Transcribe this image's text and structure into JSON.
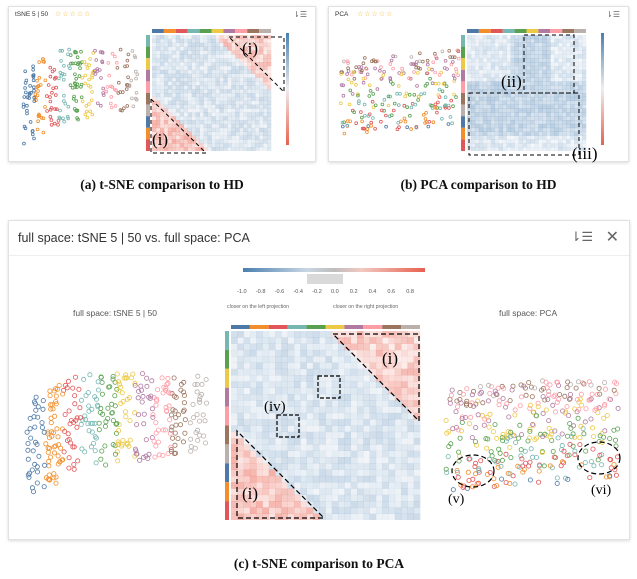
{
  "panel_a": {
    "title": "tSNE 5 | 50",
    "stars": "☆☆☆☆☆",
    "annotations": [
      "(i)",
      "(i)"
    ],
    "caption": "(a) t-SNE comparison to HD"
  },
  "panel_b": {
    "title": "PCA",
    "stars": "☆☆☆☆☆",
    "annotations": [
      "(ii)",
      "(iii)"
    ],
    "caption": "(b) PCA comparison to HD"
  },
  "panel_c": {
    "title": "full space: tSNE 5 | 50 vs. full space: PCA",
    "left_label": "full space: tSNE 5 | 50",
    "right_label": "full space: PCA",
    "colorbar_ticks": [
      "-1.0",
      "-0.8",
      "-0.6",
      "-0.4",
      "-0.2",
      "0.0",
      "0.2",
      "0.4",
      "0.6",
      "0.8",
      "1.0"
    ],
    "colorbar_left_text": "closer on the left projection",
    "colorbar_right_text": "closer on the right projection",
    "annotations": [
      "(i)",
      "(iv)",
      "(i)",
      "(v)",
      "(vi)"
    ],
    "caption": "(c) t-SNE comparison to PCA"
  },
  "colors": {
    "blue": "#4a7fb0",
    "red": "#e8604f",
    "star": "#f0b429",
    "palette": [
      "#4e79a7",
      "#f28e2b",
      "#e15759",
      "#76b7b2",
      "#59a14f",
      "#edc948",
      "#b07aa1",
      "#ff9da7",
      "#9c755f",
      "#bab0ac"
    ]
  },
  "icons": [
    "sort-icon",
    "close-icon"
  ]
}
